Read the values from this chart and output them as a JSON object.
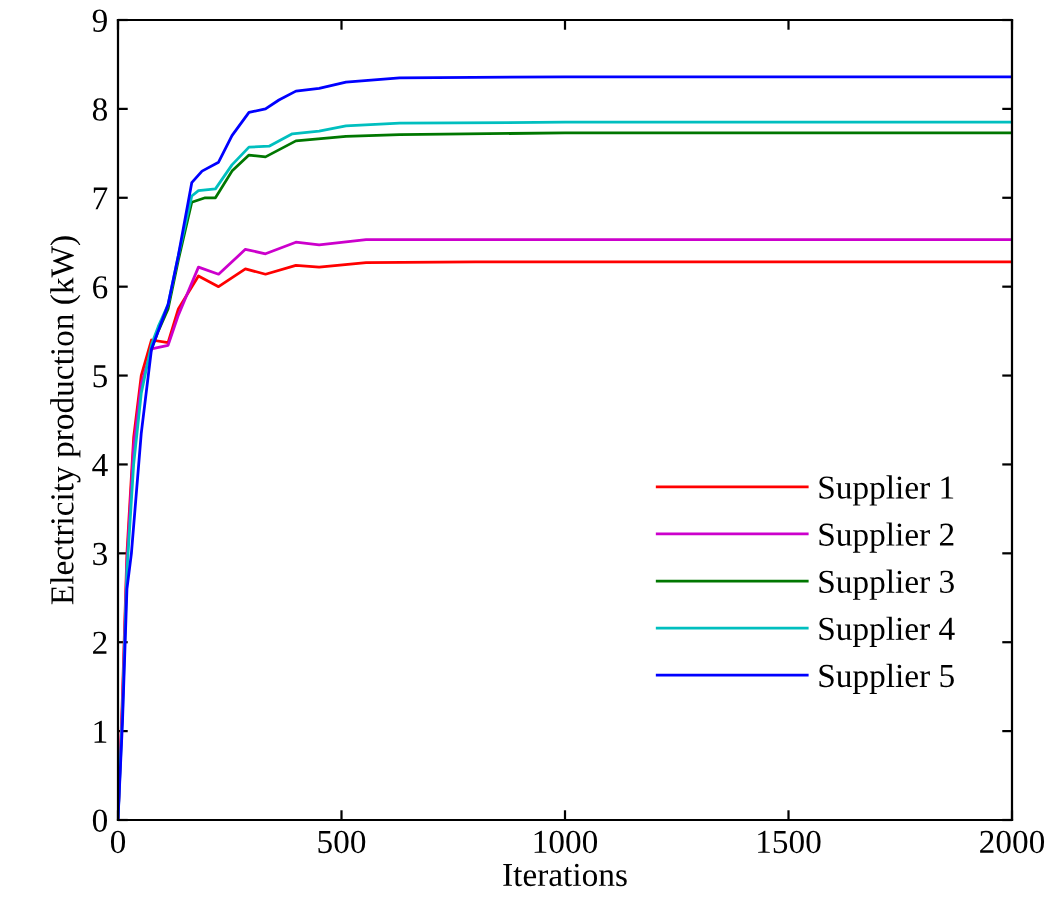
{
  "chart_data": {
    "type": "line",
    "xlabel": "Iterations",
    "ylabel": "Electricity production (kW)",
    "xlim": [
      0,
      2000
    ],
    "ylim": [
      0,
      9
    ],
    "xticks": [
      0,
      500,
      1000,
      1500,
      2000
    ],
    "yticks": [
      0,
      1,
      2,
      3,
      4,
      5,
      6,
      7,
      8,
      9
    ],
    "grid": false,
    "legend": "lower right",
    "line_style": "solid",
    "marker": "none",
    "series": [
      {
        "name": "Supplier 1",
        "color": "#ff0000",
        "x": [
          0,
          10,
          20,
          35,
          52,
          75,
          112,
          135,
          180,
          225,
          285,
          330,
          398,
          450,
          555,
          800,
          2000
        ],
        "values": [
          0,
          1.4,
          3.0,
          4.3,
          5.0,
          5.4,
          5.37,
          5.75,
          6.12,
          6.0,
          6.2,
          6.14,
          6.24,
          6.22,
          6.27,
          6.28,
          6.28
        ]
      },
      {
        "name": "Supplier 2",
        "color": "#cc00cc",
        "x": [
          0,
          10,
          20,
          35,
          52,
          75,
          112,
          135,
          180,
          225,
          285,
          330,
          398,
          450,
          555,
          800,
          2000
        ],
        "values": [
          0,
          1.3,
          2.9,
          4.2,
          4.9,
          5.3,
          5.34,
          5.68,
          6.22,
          6.14,
          6.42,
          6.37,
          6.5,
          6.47,
          6.53,
          6.53,
          6.53
        ]
      },
      {
        "name": "Supplier 3",
        "color": "#007700",
        "x": [
          75,
          90,
          112,
          135,
          165,
          195,
          218,
          255,
          293,
          330,
          398,
          510,
          630,
          1000,
          2000
        ],
        "values": [
          5.3,
          5.5,
          5.75,
          6.3,
          6.95,
          7.0,
          7.0,
          7.3,
          7.48,
          7.46,
          7.64,
          7.69,
          7.71,
          7.73,
          7.73
        ]
      },
      {
        "name": "Supplier 4",
        "color": "#00bfbf",
        "x": [
          0,
          10,
          20,
          35,
          52,
          75,
          90,
          112,
          135,
          165,
          180,
          218,
          255,
          293,
          338,
          390,
          450,
          510,
          630,
          1000,
          2000
        ],
        "values": [
          0,
          1.2,
          2.8,
          4.0,
          4.8,
          5.35,
          5.55,
          5.8,
          6.35,
          7.02,
          7.08,
          7.1,
          7.37,
          7.57,
          7.58,
          7.72,
          7.75,
          7.81,
          7.84,
          7.85,
          7.85
        ]
      },
      {
        "name": "Supplier 5",
        "color": "#0000ff",
        "x": [
          0,
          10,
          20,
          30,
          52,
          75,
          90,
          112,
          135,
          165,
          188,
          225,
          255,
          293,
          330,
          360,
          398,
          450,
          510,
          630,
          1000,
          2000
        ],
        "values": [
          0,
          1.1,
          2.6,
          3.0,
          4.35,
          5.3,
          5.5,
          5.8,
          6.35,
          7.17,
          7.3,
          7.4,
          7.7,
          7.96,
          8.0,
          8.1,
          8.2,
          8.23,
          8.3,
          8.35,
          8.36,
          8.36
        ]
      }
    ]
  }
}
